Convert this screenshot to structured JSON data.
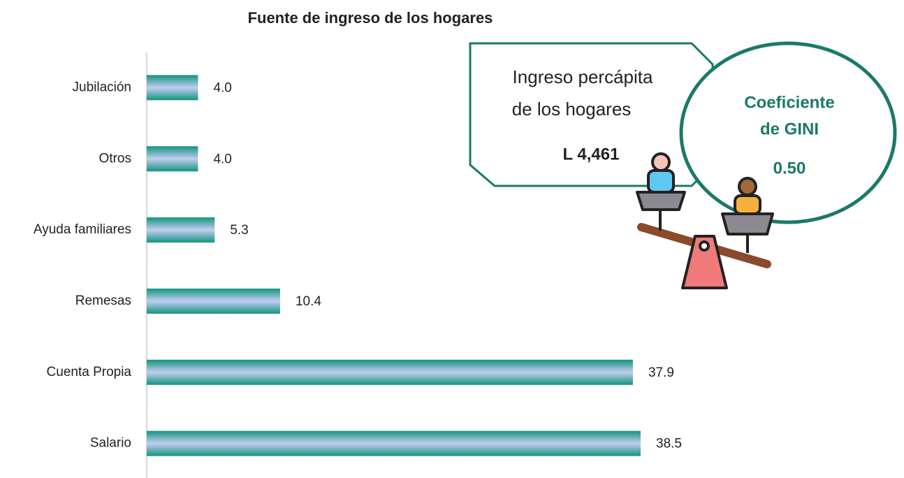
{
  "chart_data": {
    "type": "bar",
    "orientation": "horizontal",
    "title": "Fuente de ingreso de los hogares",
    "categories": [
      "Jubilación",
      "Otros",
      "Ayuda familiares",
      "Remesas",
      "Cuenta Propia",
      "Salario"
    ],
    "values": [
      4,
      4,
      5.3,
      10.4,
      37.9,
      38.5
    ],
    "value_labels": [
      "4.0",
      "4.0",
      "5.3",
      "10.4",
      "37.9",
      "38.5"
    ],
    "xlim": [
      0,
      55
    ],
    "color": "#12947f",
    "annotations": [
      {
        "lines": [
          "Ingreso percápita",
          "de los hogares"
        ],
        "value_label": "L 4,461"
      },
      {
        "lines": [
          "Coeficiente",
          "de GINI"
        ],
        "value_label": "0.50"
      }
    ]
  }
}
